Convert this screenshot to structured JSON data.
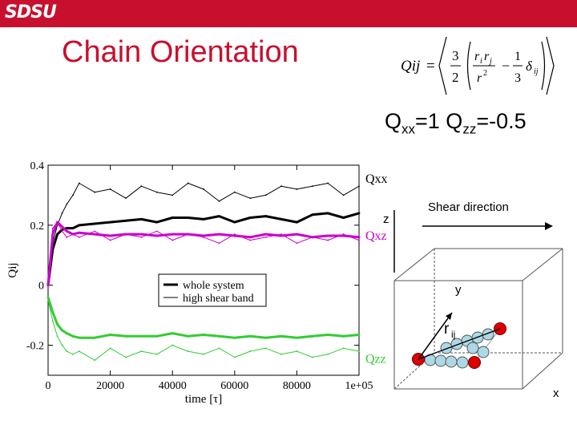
{
  "header": {
    "logo_text": "SDSU",
    "brand_color": "#c8102e"
  },
  "slide": {
    "title": "Chain Orientation",
    "formula": {
      "lhs": "Qij",
      "eq": "=",
      "three": "3",
      "two": "2",
      "num": "r",
      "sub_i": "i",
      "sub_j": "j",
      "den": "r",
      "sup2": "2",
      "minus": "−",
      "one": "1",
      "three_b": "3",
      "delta": "δ",
      "sub_ij": "ij"
    },
    "subtitle": {
      "q1": "Q",
      "s1": "xx",
      "t1": "=1 Q",
      "s2": "zz",
      "t2": "=-0.5"
    }
  },
  "chart_data": {
    "type": "line",
    "x_label": "time [τ]",
    "y_label": "Qij",
    "xlim": [
      0,
      100000
    ],
    "ylim": [
      -0.3,
      0.4
    ],
    "xticks": [
      0,
      20000,
      40000,
      60000,
      80000,
      100000
    ],
    "xtick_labels": [
      "0",
      "20000",
      "40000",
      "60000",
      "80000",
      "1e+05"
    ],
    "yticks": [
      -0.2,
      0,
      0.2,
      0.4
    ],
    "ytick_labels": [
      "-0.2",
      "0",
      "0.2",
      "0.4"
    ],
    "legend": {
      "position": "lower-center",
      "entries": [
        {
          "label": "whole system",
          "style": "thick"
        },
        {
          "label": "high shear band",
          "style": "thin"
        }
      ]
    },
    "series_labels": [
      {
        "text": "Qxx",
        "color": "#000000"
      },
      {
        "text": "Qxz",
        "color": "#cc00cc"
      },
      {
        "text": "Qzz",
        "color": "#33cc33"
      }
    ],
    "x": [
      0,
      1500,
      3000,
      4500,
      6000,
      8000,
      10000,
      15000,
      20000,
      25000,
      30000,
      35000,
      40000,
      45000,
      50000,
      55000,
      60000,
      65000,
      70000,
      75000,
      80000,
      85000,
      90000,
      95000,
      100000
    ],
    "series": [
      {
        "name": "Qxx",
        "group": "whole system",
        "color": "#000000",
        "values": [
          0,
          0.12,
          0.17,
          0.185,
          0.19,
          0.19,
          0.2,
          0.205,
          0.21,
          0.215,
          0.22,
          0.21,
          0.225,
          0.225,
          0.22,
          0.23,
          0.21,
          0.225,
          0.23,
          0.22,
          0.21,
          0.235,
          0.24,
          0.225,
          0.24
        ]
      },
      {
        "name": "Qxx",
        "group": "high shear band",
        "color": "#000000",
        "values": [
          0,
          0.14,
          0.2,
          0.24,
          0.27,
          0.3,
          0.34,
          0.31,
          0.32,
          0.29,
          0.33,
          0.31,
          0.3,
          0.34,
          0.32,
          0.28,
          0.31,
          0.29,
          0.3,
          0.33,
          0.32,
          0.33,
          0.34,
          0.3,
          0.33
        ]
      },
      {
        "name": "Qxz",
        "group": "whole system",
        "color": "#cc00cc",
        "values": [
          0,
          0.17,
          0.21,
          0.195,
          0.18,
          0.17,
          0.175,
          0.17,
          0.165,
          0.17,
          0.17,
          0.165,
          0.17,
          0.17,
          0.165,
          0.17,
          0.165,
          0.16,
          0.17,
          0.165,
          0.17,
          0.16,
          0.165,
          0.165,
          0.16
        ]
      },
      {
        "name": "Qxz",
        "group": "high shear band",
        "color": "#cc00cc",
        "values": [
          0.01,
          0.19,
          0.21,
          0.18,
          0.16,
          0.17,
          0.16,
          0.18,
          0.15,
          0.17,
          0.16,
          0.18,
          0.15,
          0.17,
          0.16,
          0.14,
          0.17,
          0.15,
          0.16,
          0.17,
          0.14,
          0.16,
          0.15,
          0.17,
          0.15
        ]
      },
      {
        "name": "Qzz",
        "group": "whole system",
        "color": "#33cc33",
        "values": [
          -0.04,
          -0.09,
          -0.13,
          -0.15,
          -0.16,
          -0.17,
          -0.175,
          -0.175,
          -0.165,
          -0.17,
          -0.17,
          -0.17,
          -0.16,
          -0.17,
          -0.165,
          -0.17,
          -0.175,
          -0.17,
          -0.175,
          -0.17,
          -0.175,
          -0.17,
          -0.165,
          -0.17,
          -0.165
        ]
      },
      {
        "name": "Qzz",
        "group": "high shear band",
        "color": "#33cc33",
        "values": [
          -0.05,
          -0.12,
          -0.17,
          -0.2,
          -0.22,
          -0.23,
          -0.22,
          -0.25,
          -0.21,
          -0.24,
          -0.22,
          -0.23,
          -0.2,
          -0.22,
          -0.23,
          -0.21,
          -0.24,
          -0.22,
          -0.21,
          -0.23,
          -0.22,
          -0.24,
          -0.23,
          -0.21,
          -0.22
        ]
      }
    ]
  },
  "diagram": {
    "axis_z": "z",
    "axis_y": "y",
    "axis_x": "x",
    "shear_label": "Shear direction",
    "vector_label": "r",
    "vector_sub": "ij",
    "bead_color": "#add8e6",
    "end_color": "#e00000"
  }
}
